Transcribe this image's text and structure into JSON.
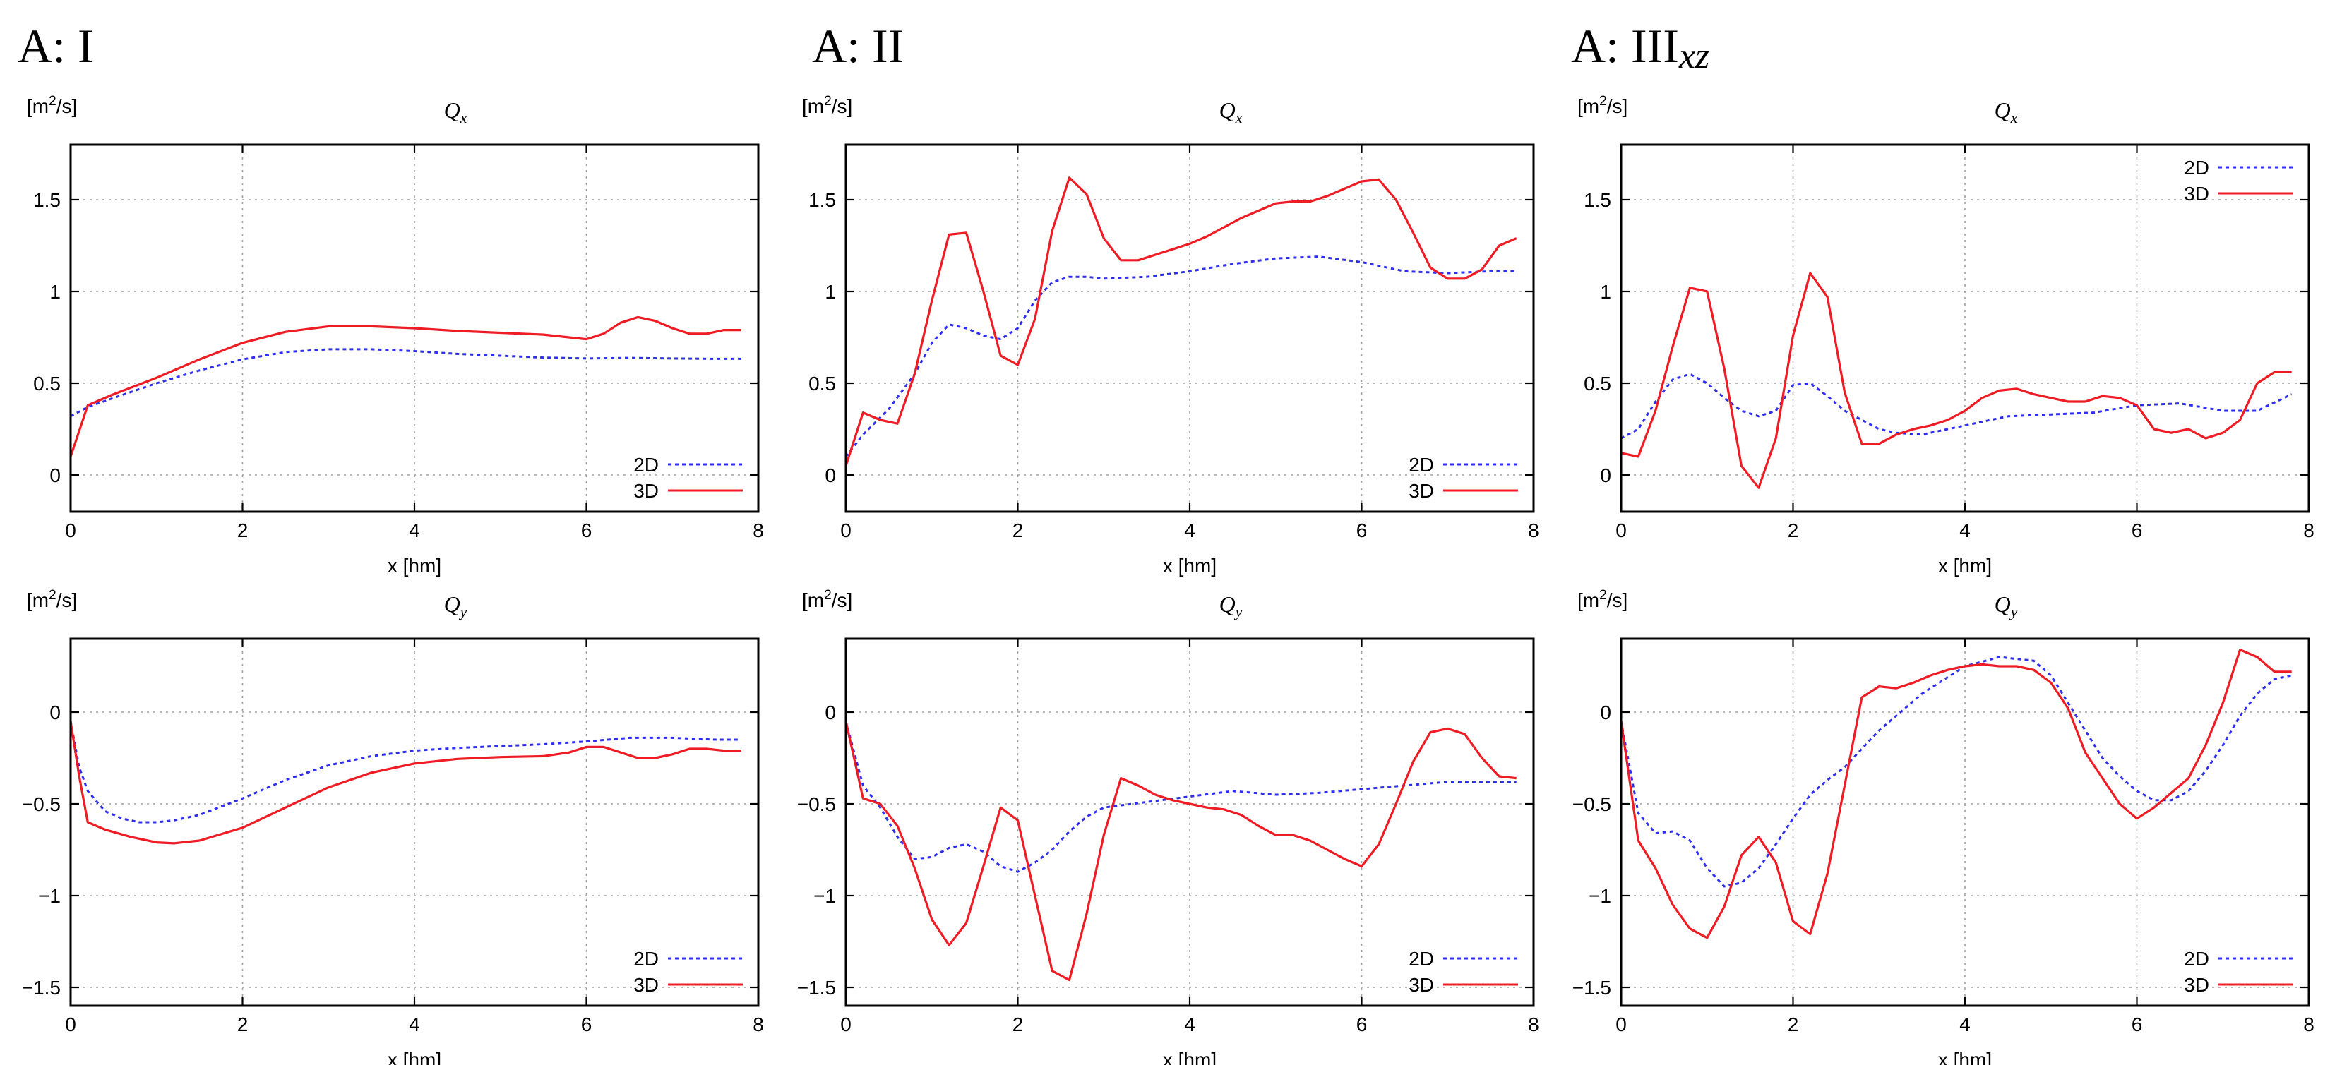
{
  "columns": [
    {
      "label": "A: I",
      "sub": ""
    },
    {
      "label": "A: II",
      "sub": ""
    },
    {
      "label": "A: III",
      "sub": "xz"
    }
  ],
  "colors": {
    "2D": "#2e2ef0",
    "3D": "#ee1c24",
    "grid": "#a0a0a0"
  },
  "chart_data": [
    {
      "type": "line",
      "column": "A: I",
      "title": "Q",
      "title_sub": "x",
      "unit_base": "[m",
      "unit_sup": "2",
      "unit_rest": "/s]",
      "xlabel": "x [hm]",
      "xlim": [
        0,
        8
      ],
      "ylim": [
        -0.2,
        1.8
      ],
      "xticks": [
        0,
        2,
        4,
        6,
        8
      ],
      "yticks": [
        0,
        0.5,
        1,
        1.5
      ],
      "yticklabels": [
        "0",
        "0.5",
        "1",
        "1.5"
      ],
      "legend_pos": "bottom-right",
      "series": [
        {
          "name": "2D",
          "style": "dashed",
          "x": [
            0,
            0.2,
            0.5,
            1,
            1.5,
            2,
            2.5,
            3,
            3.5,
            4,
            4.5,
            5,
            5.5,
            6,
            6.5,
            7,
            7.5,
            7.8
          ],
          "y": [
            0.32,
            0.37,
            0.42,
            0.5,
            0.57,
            0.63,
            0.67,
            0.685,
            0.685,
            0.675,
            0.66,
            0.65,
            0.64,
            0.635,
            0.638,
            0.635,
            0.633,
            0.633
          ]
        },
        {
          "name": "3D",
          "style": "solid",
          "x": [
            0,
            0.2,
            0.5,
            1,
            1.5,
            2,
            2.5,
            3,
            3.5,
            4,
            4.5,
            5,
            5.5,
            6,
            6.2,
            6.4,
            6.6,
            6.8,
            7,
            7.2,
            7.4,
            7.6,
            7.8
          ],
          "y": [
            0.1,
            0.38,
            0.44,
            0.53,
            0.63,
            0.72,
            0.78,
            0.81,
            0.81,
            0.8,
            0.785,
            0.775,
            0.765,
            0.74,
            0.77,
            0.83,
            0.86,
            0.84,
            0.8,
            0.77,
            0.77,
            0.79,
            0.79
          ]
        }
      ]
    },
    {
      "type": "line",
      "column": "A: II",
      "title": "Q",
      "title_sub": "x",
      "unit_base": "[m",
      "unit_sup": "2",
      "unit_rest": "/s]",
      "xlabel": "x [hm]",
      "xlim": [
        0,
        8
      ],
      "ylim": [
        -0.2,
        1.8
      ],
      "xticks": [
        0,
        2,
        4,
        6,
        8
      ],
      "yticks": [
        0,
        0.5,
        1,
        1.5
      ],
      "yticklabels": [
        "0",
        "0.5",
        "1",
        "1.5"
      ],
      "legend_pos": "bottom-right",
      "series": [
        {
          "name": "2D",
          "style": "dashed",
          "x": [
            0,
            0.2,
            0.5,
            0.8,
            1,
            1.2,
            1.4,
            1.6,
            1.8,
            2,
            2.2,
            2.4,
            2.6,
            2.8,
            3,
            3.5,
            4,
            4.5,
            5,
            5.5,
            6,
            6.5,
            7,
            7.5,
            7.8
          ],
          "y": [
            0.1,
            0.22,
            0.36,
            0.55,
            0.72,
            0.82,
            0.8,
            0.76,
            0.74,
            0.8,
            0.95,
            1.05,
            1.08,
            1.08,
            1.07,
            1.08,
            1.11,
            1.15,
            1.18,
            1.19,
            1.16,
            1.11,
            1.1,
            1.11,
            1.11
          ]
        },
        {
          "name": "3D",
          "style": "solid",
          "x": [
            0,
            0.2,
            0.4,
            0.6,
            0.8,
            1,
            1.2,
            1.4,
            1.6,
            1.8,
            2,
            2.2,
            2.4,
            2.6,
            2.8,
            3,
            3.2,
            3.4,
            3.6,
            3.8,
            4,
            4.2,
            4.4,
            4.6,
            4.8,
            5,
            5.2,
            5.4,
            5.6,
            5.8,
            6,
            6.2,
            6.4,
            6.6,
            6.8,
            7,
            7.2,
            7.4,
            7.6,
            7.8
          ],
          "y": [
            0.05,
            0.34,
            0.3,
            0.28,
            0.55,
            0.95,
            1.31,
            1.32,
            1.0,
            0.65,
            0.6,
            0.85,
            1.33,
            1.62,
            1.53,
            1.29,
            1.17,
            1.17,
            1.2,
            1.23,
            1.26,
            1.3,
            1.35,
            1.4,
            1.44,
            1.48,
            1.49,
            1.49,
            1.52,
            1.56,
            1.6,
            1.61,
            1.5,
            1.32,
            1.13,
            1.07,
            1.07,
            1.12,
            1.25,
            1.29
          ]
        }
      ]
    },
    {
      "type": "line",
      "column": "A: III",
      "title": "Q",
      "title_sub": "x",
      "unit_base": "[m",
      "unit_sup": "2",
      "unit_rest": "/s]",
      "xlabel": "x [hm]",
      "xlim": [
        0,
        8
      ],
      "ylim": [
        -0.2,
        1.8
      ],
      "xticks": [
        0,
        2,
        4,
        6,
        8
      ],
      "yticks": [
        0,
        0.5,
        1,
        1.5
      ],
      "yticklabels": [
        "0",
        "0.5",
        "1",
        "1.5"
      ],
      "legend_pos": "top-right",
      "series": [
        {
          "name": "2D",
          "style": "dashed",
          "x": [
            0,
            0.2,
            0.4,
            0.6,
            0.8,
            1,
            1.2,
            1.4,
            1.6,
            1.8,
            2,
            2.2,
            2.4,
            2.6,
            2.8,
            3,
            3.2,
            3.5,
            4,
            4.5,
            5,
            5.5,
            6,
            6.5,
            7,
            7.4,
            7.8
          ],
          "y": [
            0.2,
            0.25,
            0.4,
            0.52,
            0.55,
            0.5,
            0.42,
            0.35,
            0.32,
            0.35,
            0.49,
            0.5,
            0.43,
            0.35,
            0.3,
            0.25,
            0.23,
            0.22,
            0.27,
            0.32,
            0.33,
            0.34,
            0.38,
            0.39,
            0.35,
            0.35,
            0.44
          ]
        },
        {
          "name": "3D",
          "style": "solid",
          "x": [
            0,
            0.2,
            0.4,
            0.6,
            0.8,
            1,
            1.2,
            1.4,
            1.6,
            1.8,
            2,
            2.2,
            2.4,
            2.6,
            2.8,
            3,
            3.2,
            3.4,
            3.6,
            3.8,
            4,
            4.2,
            4.4,
            4.6,
            4.8,
            5,
            5.2,
            5.4,
            5.6,
            5.8,
            6,
            6.2,
            6.4,
            6.6,
            6.8,
            7,
            7.2,
            7.4,
            7.6,
            7.8
          ],
          "y": [
            0.12,
            0.1,
            0.35,
            0.7,
            1.02,
            1.0,
            0.58,
            0.05,
            -0.07,
            0.2,
            0.76,
            1.1,
            0.97,
            0.45,
            0.17,
            0.17,
            0.22,
            0.25,
            0.27,
            0.3,
            0.35,
            0.42,
            0.46,
            0.47,
            0.44,
            0.42,
            0.4,
            0.4,
            0.43,
            0.42,
            0.38,
            0.25,
            0.23,
            0.25,
            0.2,
            0.23,
            0.3,
            0.5,
            0.56,
            0.56
          ]
        }
      ]
    },
    {
      "type": "line",
      "column": "A: I",
      "title": "Q",
      "title_sub": "y",
      "unit_base": "[m",
      "unit_sup": "2",
      "unit_rest": "/s]",
      "xlabel": "x [hm]",
      "xlim": [
        0,
        8
      ],
      "ylim": [
        -1.6,
        0.4
      ],
      "xticks": [
        0,
        2,
        4,
        6,
        8
      ],
      "yticks": [
        -1.5,
        -1,
        -0.5,
        0
      ],
      "yticklabels": [
        "−1.5",
        "−1",
        "−0.5",
        "0"
      ],
      "legend_pos": "bottom-right",
      "series": [
        {
          "name": "2D",
          "style": "dashed",
          "x": [
            0,
            0.1,
            0.2,
            0.4,
            0.6,
            0.8,
            1,
            1.2,
            1.5,
            2,
            2.5,
            3,
            3.5,
            4,
            4.5,
            5,
            5.5,
            6,
            6.5,
            7,
            7.5,
            7.8
          ],
          "y": [
            -0.05,
            -0.3,
            -0.43,
            -0.54,
            -0.58,
            -0.6,
            -0.6,
            -0.59,
            -0.56,
            -0.47,
            -0.37,
            -0.29,
            -0.24,
            -0.21,
            -0.195,
            -0.185,
            -0.175,
            -0.16,
            -0.14,
            -0.14,
            -0.15,
            -0.15
          ]
        },
        {
          "name": "3D",
          "style": "solid",
          "x": [
            0,
            0.1,
            0.2,
            0.4,
            0.7,
            1,
            1.2,
            1.5,
            2,
            2.5,
            3,
            3.5,
            4,
            4.5,
            5,
            5.5,
            5.8,
            6,
            6.2,
            6.4,
            6.6,
            6.8,
            7,
            7.2,
            7.4,
            7.6,
            7.8
          ],
          "y": [
            -0.05,
            -0.35,
            -0.6,
            -0.64,
            -0.68,
            -0.71,
            -0.715,
            -0.7,
            -0.63,
            -0.52,
            -0.41,
            -0.33,
            -0.28,
            -0.255,
            -0.245,
            -0.24,
            -0.22,
            -0.19,
            -0.19,
            -0.22,
            -0.25,
            -0.25,
            -0.23,
            -0.2,
            -0.2,
            -0.21,
            -0.21
          ]
        }
      ]
    },
    {
      "type": "line",
      "column": "A: II",
      "title": "Q",
      "title_sub": "y",
      "unit_base": "[m",
      "unit_sup": "2",
      "unit_rest": "/s]",
      "xlabel": "x [hm]",
      "xlim": [
        0,
        8
      ],
      "ylim": [
        -1.6,
        0.4
      ],
      "xticks": [
        0,
        2,
        4,
        6,
        8
      ],
      "yticks": [
        -1.5,
        -1,
        -0.5,
        0
      ],
      "yticklabels": [
        "−1.5",
        "−1",
        "−0.5",
        "0"
      ],
      "legend_pos": "bottom-right",
      "series": [
        {
          "name": "2D",
          "style": "dashed",
          "x": [
            0,
            0.2,
            0.4,
            0.6,
            0.8,
            1,
            1.2,
            1.4,
            1.6,
            1.8,
            2,
            2.2,
            2.4,
            2.6,
            2.8,
            3,
            3.5,
            4,
            4.5,
            5,
            5.5,
            6,
            6.5,
            7,
            7.5,
            7.8
          ],
          "y": [
            -0.05,
            -0.4,
            -0.52,
            -0.68,
            -0.8,
            -0.79,
            -0.74,
            -0.72,
            -0.76,
            -0.84,
            -0.87,
            -0.82,
            -0.75,
            -0.65,
            -0.57,
            -0.52,
            -0.49,
            -0.46,
            -0.43,
            -0.45,
            -0.44,
            -0.42,
            -0.4,
            -0.38,
            -0.38,
            -0.38
          ]
        },
        {
          "name": "3D",
          "style": "solid",
          "x": [
            0,
            0.2,
            0.4,
            0.6,
            0.8,
            1,
            1.2,
            1.4,
            1.6,
            1.8,
            2,
            2.2,
            2.4,
            2.6,
            2.8,
            3,
            3.2,
            3.4,
            3.6,
            3.8,
            4,
            4.2,
            4.4,
            4.6,
            4.8,
            5,
            5.2,
            5.4,
            5.6,
            5.8,
            6,
            6.2,
            6.4,
            6.6,
            6.8,
            7,
            7.2,
            7.4,
            7.6,
            7.8
          ],
          "y": [
            -0.05,
            -0.47,
            -0.5,
            -0.62,
            -0.85,
            -1.13,
            -1.27,
            -1.15,
            -0.84,
            -0.52,
            -0.59,
            -1.0,
            -1.41,
            -1.46,
            -1.1,
            -0.67,
            -0.36,
            -0.4,
            -0.45,
            -0.48,
            -0.5,
            -0.52,
            -0.53,
            -0.56,
            -0.62,
            -0.67,
            -0.67,
            -0.7,
            -0.75,
            -0.8,
            -0.84,
            -0.72,
            -0.5,
            -0.27,
            -0.11,
            -0.09,
            -0.12,
            -0.25,
            -0.35,
            -0.36
          ]
        }
      ]
    },
    {
      "type": "line",
      "column": "A: III",
      "title": "Q",
      "title_sub": "y",
      "unit_base": "[m",
      "unit_sup": "2",
      "unit_rest": "/s]",
      "xlabel": "x [hm]",
      "xlim": [
        0,
        8
      ],
      "ylim": [
        -1.6,
        0.4
      ],
      "xticks": [
        0,
        2,
        4,
        6,
        8
      ],
      "yticks": [
        -1.5,
        -1,
        -0.5,
        0
      ],
      "yticklabels": [
        "−1.5",
        "−1",
        "−0.5",
        "0"
      ],
      "legend_pos": "bottom-right",
      "series": [
        {
          "name": "2D",
          "style": "dashed",
          "x": [
            0,
            0.2,
            0.4,
            0.6,
            0.8,
            1,
            1.2,
            1.4,
            1.6,
            1.8,
            2,
            2.2,
            2.4,
            2.6,
            2.8,
            3,
            3.5,
            4,
            4.4,
            4.8,
            5,
            5.2,
            5.4,
            5.6,
            5.8,
            6,
            6.2,
            6.4,
            6.6,
            6.8,
            7,
            7.2,
            7.4,
            7.6,
            7.8
          ],
          "y": [
            -0.05,
            -0.55,
            -0.66,
            -0.65,
            -0.7,
            -0.85,
            -0.95,
            -0.93,
            -0.85,
            -0.72,
            -0.58,
            -0.45,
            -0.37,
            -0.3,
            -0.2,
            -0.1,
            0.1,
            0.25,
            0.3,
            0.28,
            0.2,
            0.05,
            -0.1,
            -0.25,
            -0.35,
            -0.43,
            -0.48,
            -0.48,
            -0.43,
            -0.32,
            -0.18,
            -0.02,
            0.1,
            0.18,
            0.2
          ]
        },
        {
          "name": "3D",
          "style": "solid",
          "x": [
            0,
            0.2,
            0.4,
            0.6,
            0.8,
            1,
            1.2,
            1.4,
            1.6,
            1.8,
            2,
            2.2,
            2.4,
            2.6,
            2.8,
            3,
            3.2,
            3.4,
            3.6,
            3.8,
            4,
            4.2,
            4.4,
            4.6,
            4.8,
            5,
            5.2,
            5.4,
            5.6,
            5.8,
            6,
            6.2,
            6.4,
            6.6,
            6.8,
            7,
            7.2,
            7.4,
            7.6,
            7.8
          ],
          "y": [
            -0.05,
            -0.7,
            -0.85,
            -1.05,
            -1.18,
            -1.23,
            -1.06,
            -0.78,
            -0.68,
            -0.82,
            -1.14,
            -1.21,
            -0.88,
            -0.4,
            0.08,
            0.14,
            0.13,
            0.16,
            0.2,
            0.23,
            0.25,
            0.26,
            0.25,
            0.25,
            0.23,
            0.16,
            0.02,
            -0.22,
            -0.36,
            -0.5,
            -0.58,
            -0.52,
            -0.44,
            -0.36,
            -0.18,
            0.05,
            0.34,
            0.3,
            0.22,
            0.22
          ]
        }
      ]
    }
  ]
}
